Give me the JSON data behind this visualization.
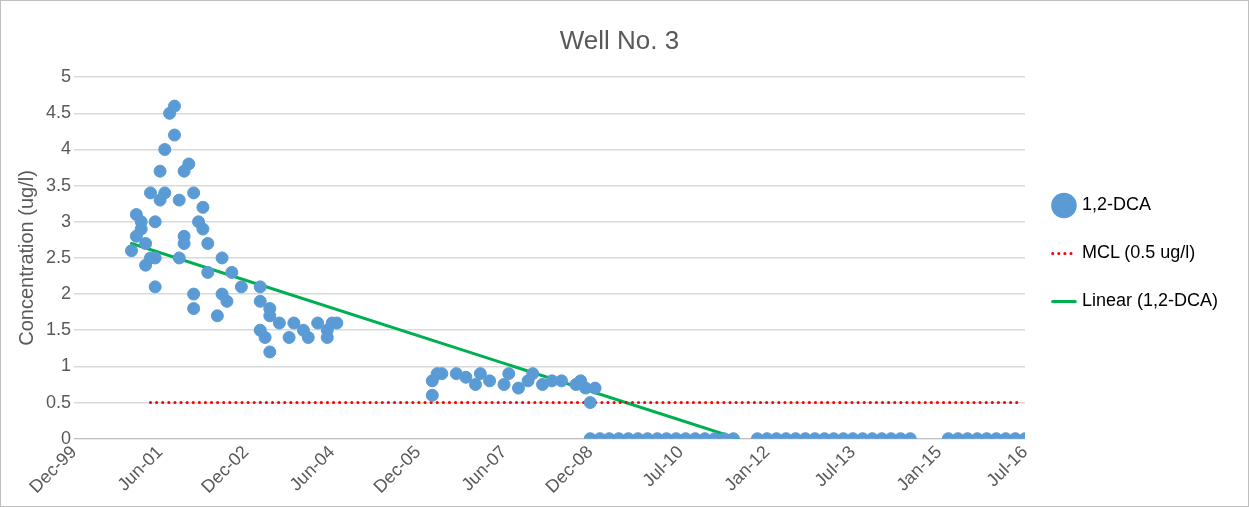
{
  "chart_data": {
    "type": "scatter",
    "title": "Well No. 3",
    "ylabel": "Concentration (ug/l)",
    "legend": "right",
    "grid": "y",
    "xlim": [
      "1999-12",
      "2016-07"
    ],
    "xticks": [
      {
        "value": "1999-12",
        "label": "Dec-99"
      },
      {
        "value": "2001-06",
        "label": "Jun-01"
      },
      {
        "value": "2002-12",
        "label": "Dec-02"
      },
      {
        "value": "2004-06",
        "label": "Jun-04"
      },
      {
        "value": "2005-12",
        "label": "Dec-05"
      },
      {
        "value": "2007-06",
        "label": "Jun-07"
      },
      {
        "value": "2008-12",
        "label": "Dec-08"
      },
      {
        "value": "2010-07",
        "label": "Jul-10"
      },
      {
        "value": "2012-01",
        "label": "Jan-12"
      },
      {
        "value": "2013-07",
        "label": "Jul-13"
      },
      {
        "value": "2015-01",
        "label": "Jan-15"
      },
      {
        "value": "2016-07",
        "label": "Jul-16"
      }
    ],
    "ylim": [
      0,
      5
    ],
    "yticks": [
      0,
      0.5,
      1,
      1.5,
      2,
      2.5,
      3,
      3.5,
      4,
      4.5,
      5
    ],
    "series": [
      {
        "name": "1,2-DCA",
        "color": "#5b9bd5",
        "marker": "circle",
        "x": [
          "2000-12",
          "2001-01",
          "2001-01",
          "2001-02",
          "2001-02",
          "2001-03",
          "2001-03",
          "2001-04",
          "2001-04",
          "2001-05",
          "2001-05",
          "2001-05",
          "2001-06",
          "2001-06",
          "2001-07",
          "2001-07",
          "2001-08",
          "2001-09",
          "2001-09",
          "2001-10",
          "2001-10",
          "2001-11",
          "2001-11",
          "2001-11",
          "2001-12",
          "2002-01",
          "2002-01",
          "2002-01",
          "2002-02",
          "2002-03",
          "2002-03",
          "2002-04",
          "2002-04",
          "2002-06",
          "2002-07",
          "2002-07",
          "2002-08",
          "2002-09",
          "2002-11",
          "2003-03",
          "2003-03",
          "2003-03",
          "2003-04",
          "2003-05",
          "2003-05",
          "2003-05",
          "2003-07",
          "2003-09",
          "2003-10",
          "2003-12",
          "2004-01",
          "2004-03",
          "2004-05",
          "2004-05",
          "2004-06",
          "2004-07",
          "2006-03",
          "2006-03",
          "2006-04",
          "2006-05",
          "2006-08",
          "2006-10",
          "2006-12",
          "2007-01",
          "2007-03",
          "2007-06",
          "2007-07",
          "2007-09",
          "2007-11",
          "2007-12",
          "2008-02",
          "2008-04",
          "2008-06",
          "2008-09",
          "2008-10",
          "2008-11",
          "2008-12",
          "2009-01",
          "2008-12",
          "2009-02",
          "2009-04",
          "2009-06",
          "2009-08",
          "2009-10",
          "2009-12",
          "2010-02",
          "2010-04",
          "2010-06",
          "2010-08",
          "2010-10",
          "2010-12",
          "2011-02",
          "2011-04",
          "2011-06",
          "2011-11",
          "2012-01",
          "2012-03",
          "2012-05",
          "2012-07",
          "2012-09",
          "2012-11",
          "2013-01",
          "2013-03",
          "2013-05",
          "2013-07",
          "2013-09",
          "2013-11",
          "2014-01",
          "2014-03",
          "2014-05",
          "2014-07",
          "2015-03",
          "2015-05",
          "2015-07",
          "2015-09",
          "2015-11",
          "2016-01",
          "2016-03",
          "2016-05",
          "2016-07"
        ],
        "values": [
          2.6,
          3.1,
          2.8,
          3.0,
          2.9,
          2.7,
          2.4,
          2.5,
          3.4,
          3.0,
          2.1,
          2.5,
          3.7,
          3.3,
          3.4,
          4.0,
          4.5,
          4.6,
          4.2,
          2.5,
          3.3,
          3.7,
          2.8,
          2.7,
          3.8,
          3.4,
          2.0,
          1.8,
          3.0,
          3.2,
          2.9,
          2.7,
          2.3,
          1.7,
          2.5,
          2.0,
          1.9,
          2.3,
          2.1,
          2.1,
          1.9,
          1.5,
          1.4,
          1.7,
          1.2,
          1.8,
          1.6,
          1.4,
          1.6,
          1.5,
          1.4,
          1.6,
          1.4,
          1.5,
          1.6,
          1.6,
          0.6,
          0.8,
          0.9,
          0.9,
          0.9,
          0.85,
          0.75,
          0.9,
          0.8,
          0.75,
          0.9,
          0.7,
          0.8,
          0.9,
          0.75,
          0.8,
          0.8,
          0.75,
          0.8,
          0.7,
          0.5,
          0.7,
          0,
          0,
          0,
          0,
          0,
          0,
          0,
          0,
          0,
          0,
          0,
          0,
          0,
          0,
          0,
          0,
          0,
          0,
          0,
          0,
          0,
          0,
          0,
          0,
          0,
          0,
          0,
          0,
          0,
          0,
          0,
          0,
          0,
          0,
          0,
          0,
          0,
          0,
          0,
          0,
          0,
          0
        ]
      },
      {
        "name": "MCL (0.5 ug/l)",
        "type": "line",
        "color": "#ff0000",
        "line_style": "dotted",
        "marker": "none",
        "x": [
          "2001-04",
          "2016-06"
        ],
        "values": [
          0.5,
          0.5
        ]
      },
      {
        "name": "Linear (1,2-DCA)",
        "type": "line",
        "color": "#00b050",
        "line_style": "solid",
        "marker": "none",
        "x": [
          "2000-12",
          "2011-07"
        ],
        "values": [
          2.7,
          0
        ]
      }
    ]
  }
}
